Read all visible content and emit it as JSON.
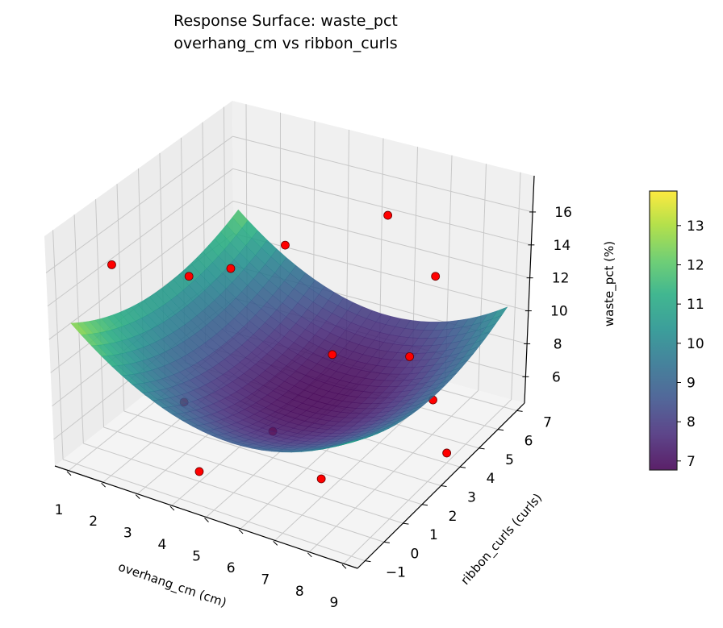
{
  "chart_data": {
    "type": "surface3d",
    "title_line1": "Response Surface: waste_pct",
    "title_line2": "overhang_cm vs ribbon_curls",
    "xlabel": "overhang_cm (cm)",
    "ylabel": "ribbon_curls (curls)",
    "zlabel": "waste_pct (%)",
    "xlim": [
      0.6,
      9.4
    ],
    "ylim": [
      -1.4,
      7.4
    ],
    "zlim": [
      4.4,
      18.2
    ],
    "xticks": [
      1,
      2,
      3,
      4,
      5,
      6,
      7,
      8,
      9
    ],
    "yticks": [
      -1,
      0,
      1,
      2,
      3,
      4,
      5,
      6,
      7
    ],
    "yticklabels": [
      "−1",
      "0",
      "1",
      "2",
      "3",
      "4",
      "5",
      "6",
      "7"
    ],
    "zticks": [
      6,
      8,
      10,
      12,
      14,
      16
    ],
    "surface": {
      "model": "z = 6.8 + 0.2*(x-5.5)^2 + 0.1*(y-3.5)^2",
      "colormap": "viridis",
      "alpha": 0.85
    },
    "colorbar": {
      "min": 6.77,
      "max": 13.88,
      "ticks": [
        7,
        8,
        9,
        10,
        11,
        12,
        13
      ]
    },
    "points": [
      {
        "x": 1,
        "y": 1,
        "z": 14.5
      },
      {
        "x": 2,
        "y": 3,
        "z": 12.5
      },
      {
        "x": 2,
        "y": 5,
        "z": 11
      },
      {
        "x": 3,
        "y": 6,
        "z": 12
      },
      {
        "x": 6,
        "y": 6,
        "z": 15.5
      },
      {
        "x": 8,
        "y": 5,
        "z": 14
      },
      {
        "x": 5,
        "y": 5,
        "z": 7.5
      },
      {
        "x": 7,
        "y": 5.5,
        "z": 8
      },
      {
        "x": 8,
        "y": 5,
        "z": 6.5
      },
      {
        "x": 3,
        "y": 1,
        "z": 7.5
      },
      {
        "x": 4,
        "y": 0,
        "z": 5
      },
      {
        "x": 5,
        "y": 2,
        "z": 6
      },
      {
        "x": 7,
        "y": 1,
        "z": 5.5
      },
      {
        "x": 9,
        "y": 4,
        "z": 5
      }
    ],
    "point_color": "#ff0000"
  }
}
